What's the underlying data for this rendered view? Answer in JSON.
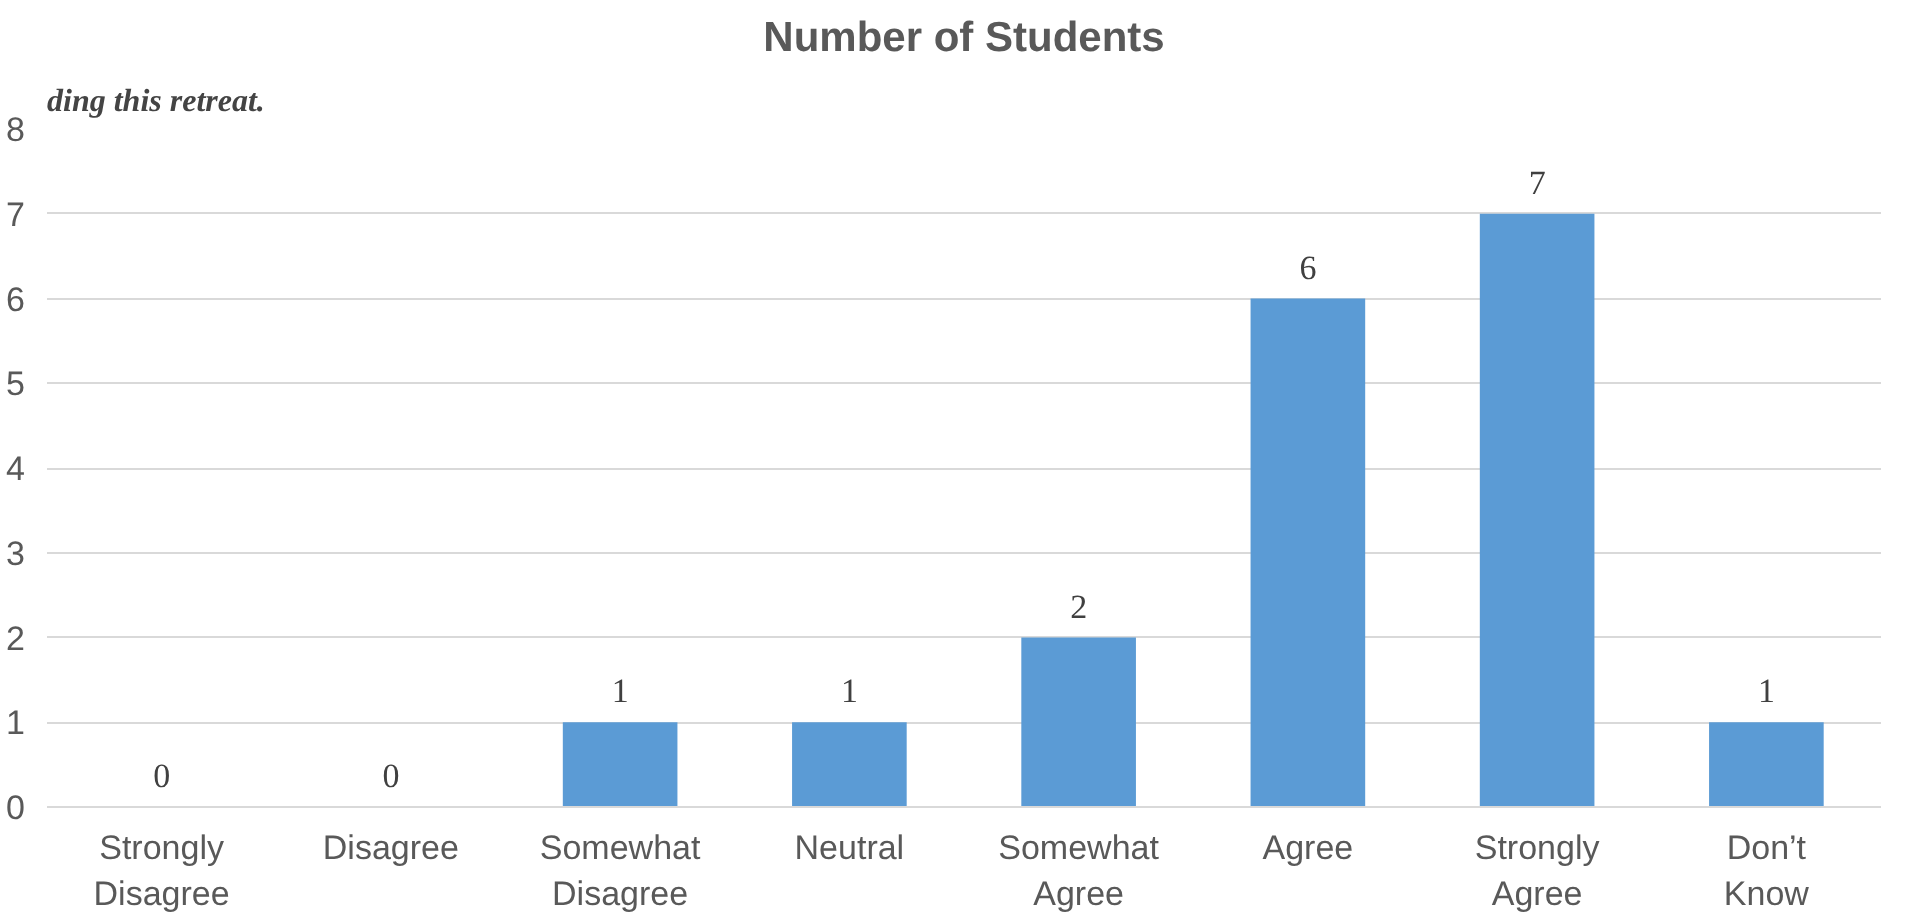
{
  "chart_data": {
    "type": "bar",
    "title": "Number of Students",
    "annotations": [
      "ding this retreat."
    ],
    "categories": [
      "Strongly Disagree",
      "Disagree",
      "Somewhat Disagree",
      "Neutral",
      "Somewhat Agree",
      "Agree",
      "Strongly Agree",
      "Don’t Know"
    ],
    "values": [
      0,
      0,
      1,
      1,
      2,
      6,
      7,
      1
    ],
    "color": "#5b9bd5",
    "ylim": [
      0,
      8
    ],
    "yticks": [
      0,
      1,
      2,
      3,
      4,
      5,
      6,
      7,
      8
    ],
    "grid": "y",
    "data_labels": true
  }
}
